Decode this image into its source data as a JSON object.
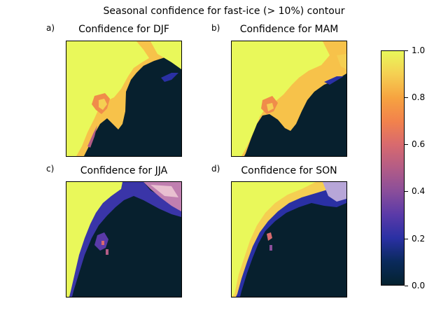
{
  "figure": {
    "title": "Seasonal confidence for fast-ice (> 10%) contour"
  },
  "panels": [
    {
      "letter": "a)",
      "title": "Confidence for DJF",
      "season": "DJF"
    },
    {
      "letter": "b)",
      "title": "Confidence for MAM",
      "season": "MAM"
    },
    {
      "letter": "c)",
      "title": "Confidence for JJA",
      "season": "JJA"
    },
    {
      "letter": "d)",
      "title": "Confidence for SON",
      "season": "SON"
    }
  ],
  "colorbar": {
    "ticks": [
      "0.0",
      "0.2",
      "0.4",
      "0.6",
      "0.8",
      "1.0"
    ],
    "min": 0.0,
    "max": 1.0,
    "colors": {
      "low": "#04222f",
      "mid_low": "#2a30a4",
      "mid": "#b35c86",
      "mid_high": "#f2824c",
      "high": "#e9f85a"
    }
  },
  "chart_data": {
    "type": "heatmap",
    "colormap_range": [
      0.0,
      1.0
    ],
    "panels": [
      "DJF",
      "MAM",
      "JJA",
      "SON"
    ]
  }
}
